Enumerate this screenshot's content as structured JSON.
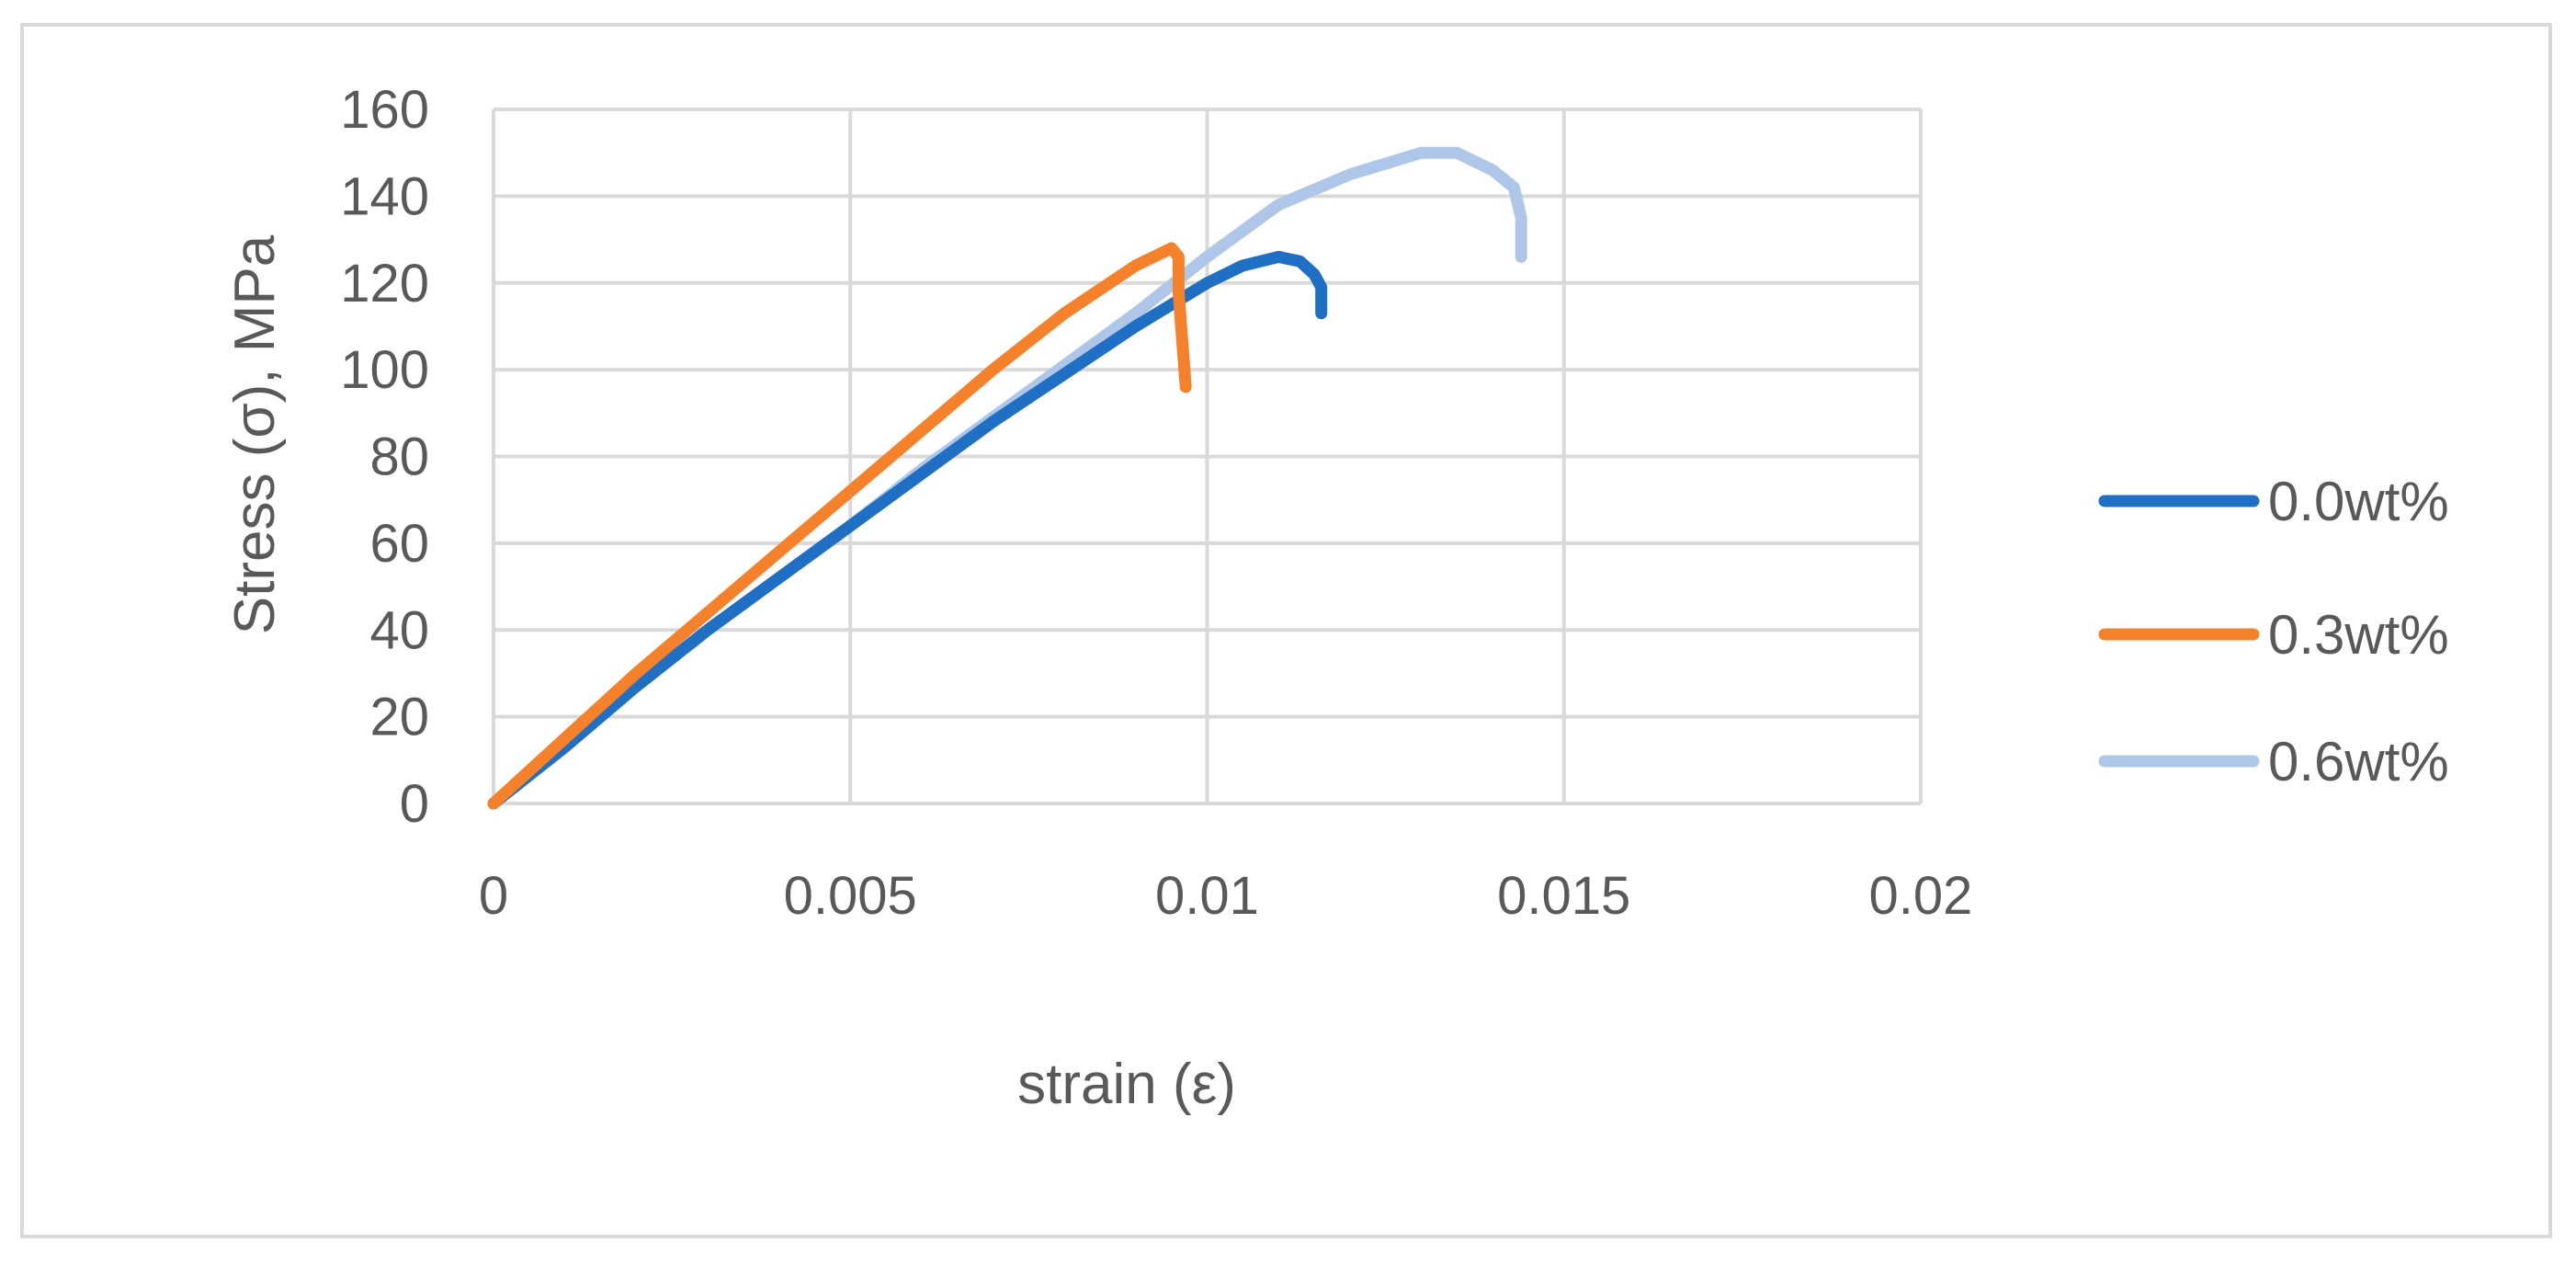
{
  "chart_data": {
    "type": "line",
    "xlabel": "strain (ε)",
    "ylabel": "Stress (σ),  MPa",
    "xlim": [
      0,
      0.02
    ],
    "ylim": [
      0,
      160
    ],
    "x_ticks": [
      0,
      0.005,
      0.01,
      0.015,
      0.02
    ],
    "x_tick_labels": [
      "0",
      "0.005",
      "0.01",
      "0.015",
      "0.02"
    ],
    "y_ticks": [
      0,
      20,
      40,
      60,
      80,
      100,
      120,
      140,
      160
    ],
    "y_tick_labels": [
      "0",
      "20",
      "40",
      "60",
      "80",
      "100",
      "120",
      "140",
      "160"
    ],
    "grid": true,
    "legend_position": "right",
    "series": [
      {
        "name": "0.0wt%",
        "color": "#1f6fc5",
        "points": [
          [
            0,
            0
          ],
          [
            0.001,
            13
          ],
          [
            0.002,
            27
          ],
          [
            0.003,
            40
          ],
          [
            0.004,
            52
          ],
          [
            0.005,
            64
          ],
          [
            0.006,
            76
          ],
          [
            0.007,
            88
          ],
          [
            0.008,
            99
          ],
          [
            0.009,
            110
          ],
          [
            0.0095,
            115
          ],
          [
            0.01,
            120
          ],
          [
            0.0105,
            124
          ],
          [
            0.011,
            126
          ],
          [
            0.0113,
            125
          ],
          [
            0.0115,
            122
          ],
          [
            0.0116,
            119
          ],
          [
            0.0116,
            113
          ]
        ]
      },
      {
        "name": "0.3wt%",
        "color": "#f5822b",
        "points": [
          [
            0,
            0
          ],
          [
            0.001,
            15
          ],
          [
            0.002,
            30
          ],
          [
            0.003,
            44
          ],
          [
            0.004,
            58
          ],
          [
            0.005,
            72
          ],
          [
            0.006,
            86
          ],
          [
            0.007,
            100
          ],
          [
            0.008,
            113
          ],
          [
            0.009,
            124
          ],
          [
            0.0095,
            128
          ],
          [
            0.0096,
            126
          ],
          [
            0.0096,
            118
          ],
          [
            0.0097,
            96
          ]
        ]
      },
      {
        "name": "0.6wt%",
        "color": "#aec6e8",
        "points": [
          [
            0,
            0
          ],
          [
            0.001,
            14
          ],
          [
            0.002,
            27
          ],
          [
            0.003,
            40
          ],
          [
            0.004,
            52
          ],
          [
            0.005,
            64
          ],
          [
            0.006,
            77
          ],
          [
            0.007,
            89
          ],
          [
            0.008,
            101
          ],
          [
            0.009,
            113
          ],
          [
            0.01,
            126
          ],
          [
            0.011,
            138
          ],
          [
            0.012,
            145
          ],
          [
            0.013,
            150
          ],
          [
            0.0135,
            150
          ],
          [
            0.014,
            146
          ],
          [
            0.0143,
            142
          ],
          [
            0.0144,
            135
          ],
          [
            0.0144,
            126
          ]
        ]
      }
    ]
  }
}
